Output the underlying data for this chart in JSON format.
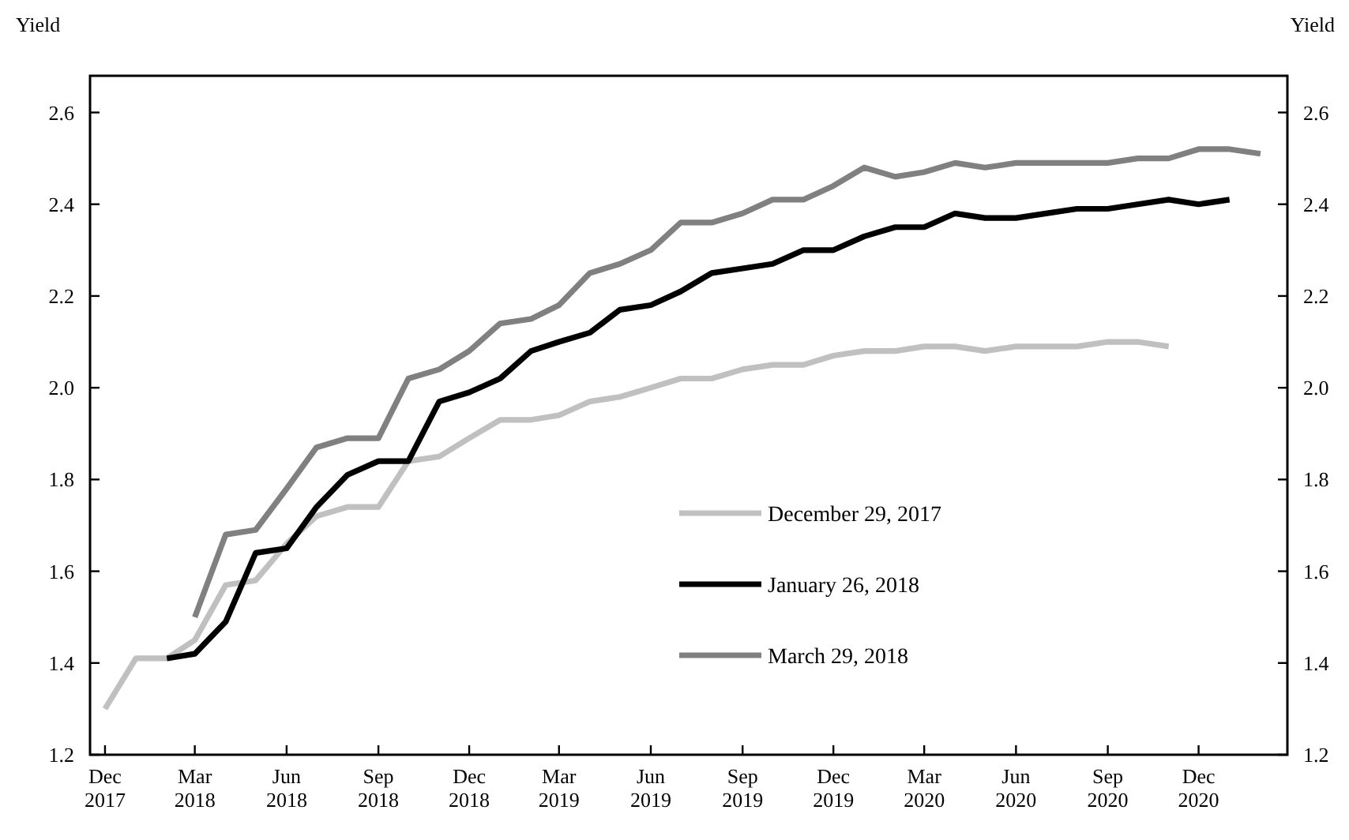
{
  "chart_data": {
    "type": "line",
    "ylabel": "Yield",
    "y2label": "Yield",
    "xlim": [
      "2017-11-16",
      "2021-02-28"
    ],
    "xticks": [
      {
        "value": "2017-12",
        "label": "Dec\n2017"
      },
      {
        "value": "2018-03",
        "label": "Mar\n2018"
      },
      {
        "value": "2018-06",
        "label": "Jun\n2018"
      },
      {
        "value": "2018-09",
        "label": "Sep\n2018"
      },
      {
        "value": "2018-12",
        "label": "Dec\n2018"
      },
      {
        "value": "2019-03",
        "label": "Mar\n2019"
      },
      {
        "value": "2019-06",
        "label": "Jun\n2019"
      },
      {
        "value": "2019-09",
        "label": "Sep\n2019"
      },
      {
        "value": "2019-12",
        "label": "Dec\n2019"
      },
      {
        "value": "2020-03",
        "label": "Mar\n2020"
      },
      {
        "value": "2020-06",
        "label": "Jun\n2020"
      },
      {
        "value": "2020-09",
        "label": "Sep\n2020"
      },
      {
        "value": "2020-12",
        "label": "Dec\n2020"
      }
    ],
    "ylim": [
      1.2,
      2.68
    ],
    "yticks": [
      {
        "value": 1.2,
        "label": "1.2"
      },
      {
        "value": 1.4,
        "label": "1.4"
      },
      {
        "value": 1.6,
        "label": "1.6"
      },
      {
        "value": 1.8,
        "label": "1.8"
      },
      {
        "value": 2.0,
        "label": "2.0"
      },
      {
        "value": 2.2,
        "label": "2.2"
      },
      {
        "value": 2.4,
        "label": "2.4"
      },
      {
        "value": 2.6,
        "label": "2.6"
      }
    ],
    "y2lim": [
      1.2,
      2.68
    ],
    "y2ticks": [
      {
        "value": 1.2,
        "label": "1.2"
      },
      {
        "value": 1.4,
        "label": "1.4"
      },
      {
        "value": 1.6,
        "label": "1.6"
      },
      {
        "value": 1.8,
        "label": "1.8"
      },
      {
        "value": 2.0,
        "label": "2.0"
      },
      {
        "value": 2.2,
        "label": "2.2"
      },
      {
        "value": 2.4,
        "label": "2.4"
      },
      {
        "value": 2.6,
        "label": "2.6"
      }
    ],
    "legend": "right",
    "series": [
      {
        "name": "December 29, 2017",
        "color": "#c0c0c0",
        "x": [
          "2017-12",
          "2018-01",
          "2018-02",
          "2018-03",
          "2018-04",
          "2018-05",
          "2018-06",
          "2018-07",
          "2018-08",
          "2018-09",
          "2018-10",
          "2018-11",
          "2018-12",
          "2019-01",
          "2019-02",
          "2019-03",
          "2019-04",
          "2019-05",
          "2019-06",
          "2019-07",
          "2019-08",
          "2019-09",
          "2019-10",
          "2019-11",
          "2019-12",
          "2020-01",
          "2020-02",
          "2020-03",
          "2020-04",
          "2020-05",
          "2020-06",
          "2020-07",
          "2020-08",
          "2020-09",
          "2020-10",
          "2020-11"
        ],
        "values": [
          1.3,
          1.41,
          1.41,
          1.45,
          1.57,
          1.58,
          1.66,
          1.72,
          1.74,
          1.74,
          1.84,
          1.85,
          1.89,
          1.93,
          1.93,
          1.94,
          1.97,
          1.98,
          2.0,
          2.02,
          2.02,
          2.04,
          2.05,
          2.05,
          2.07,
          2.08,
          2.08,
          2.09,
          2.09,
          2.08,
          2.09,
          2.09,
          2.09,
          2.1,
          2.1,
          2.09
        ]
      },
      {
        "name": "January 26, 2018",
        "color": "#000000",
        "x": [
          "2018-02",
          "2018-03",
          "2018-04",
          "2018-05",
          "2018-06",
          "2018-07",
          "2018-08",
          "2018-09",
          "2018-10",
          "2018-11",
          "2018-12",
          "2019-01",
          "2019-02",
          "2019-03",
          "2019-04",
          "2019-05",
          "2019-06",
          "2019-07",
          "2019-08",
          "2019-09",
          "2019-10",
          "2019-11",
          "2019-12",
          "2020-01",
          "2020-02",
          "2020-03",
          "2020-04",
          "2020-05",
          "2020-06",
          "2020-07",
          "2020-08",
          "2020-09",
          "2020-10",
          "2020-11",
          "2020-12",
          "2021-01"
        ],
        "values": [
          1.41,
          1.42,
          1.49,
          1.64,
          1.65,
          1.74,
          1.81,
          1.84,
          1.84,
          1.97,
          1.99,
          2.02,
          2.08,
          2.1,
          2.12,
          2.17,
          2.18,
          2.21,
          2.25,
          2.26,
          2.27,
          2.3,
          2.3,
          2.33,
          2.35,
          2.35,
          2.38,
          2.37,
          2.37,
          2.38,
          2.39,
          2.39,
          2.4,
          2.41,
          2.4,
          2.41
        ]
      },
      {
        "name": "March 29, 2018",
        "color": "#808080",
        "x": [
          "2018-03",
          "2018-04",
          "2018-05",
          "2018-06",
          "2018-07",
          "2018-08",
          "2018-09",
          "2018-10",
          "2018-11",
          "2018-12",
          "2019-01",
          "2019-02",
          "2019-03",
          "2019-04",
          "2019-05",
          "2019-06",
          "2019-07",
          "2019-08",
          "2019-09",
          "2019-10",
          "2019-11",
          "2019-12",
          "2020-01",
          "2020-02",
          "2020-03",
          "2020-04",
          "2020-05",
          "2020-06",
          "2020-07",
          "2020-08",
          "2020-09",
          "2020-10",
          "2020-11",
          "2020-12",
          "2021-01",
          "2021-02"
        ],
        "values": [
          1.5,
          1.68,
          1.69,
          1.78,
          1.87,
          1.89,
          1.89,
          2.02,
          2.04,
          2.08,
          2.14,
          2.15,
          2.18,
          2.25,
          2.27,
          2.3,
          2.36,
          2.36,
          2.38,
          2.41,
          2.41,
          2.44,
          2.48,
          2.46,
          2.47,
          2.49,
          2.48,
          2.49,
          2.49,
          2.49,
          2.49,
          2.5,
          2.5,
          2.52,
          2.52,
          2.51
        ]
      }
    ]
  }
}
